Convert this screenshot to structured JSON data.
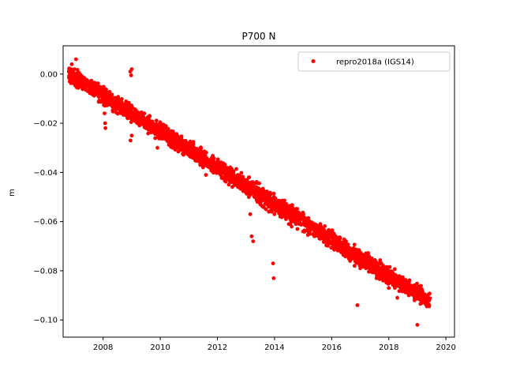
{
  "chart_data": {
    "type": "scatter",
    "title": "P700 N",
    "xlabel": "",
    "ylabel": "m",
    "xlim": [
      2006.6,
      2020.3
    ],
    "ylim": [
      -0.107,
      0.0115
    ],
    "xticks": [
      2008,
      2010,
      2012,
      2014,
      2016,
      2018,
      2020
    ],
    "yticks": [
      0.0,
      -0.02,
      -0.04,
      -0.06,
      -0.08,
      -0.1
    ],
    "ytick_labels": [
      "0.00",
      "−0.02",
      "−0.04",
      "−0.06",
      "−0.08",
      "−0.10"
    ],
    "legend": {
      "position": "top-right",
      "entries": [
        "repro2018a (IGS14)"
      ]
    },
    "series": [
      {
        "name": "repro2018a (IGS14)",
        "color": "#ff0000",
        "trend": {
          "x_start": 2006.8,
          "x_end": 2019.45,
          "y_start": 0.0,
          "y_end": -0.0925
        },
        "points": [
          [
            2006.8,
            0.001
          ],
          [
            2006.85,
            -0.002
          ],
          [
            2006.9,
            0.004
          ],
          [
            2007.0,
            0.002
          ],
          [
            2007.05,
            0.006
          ],
          [
            2007.1,
            0.0
          ],
          [
            2007.2,
            -0.001
          ],
          [
            2007.3,
            -0.002
          ],
          [
            2007.4,
            -0.004
          ],
          [
            2007.5,
            -0.005
          ],
          [
            2007.6,
            -0.006
          ],
          [
            2007.7,
            -0.007
          ],
          [
            2007.8,
            -0.008
          ],
          [
            2007.9,
            -0.009
          ],
          [
            2008.0,
            -0.01
          ],
          [
            2008.05,
            -0.016
          ],
          [
            2008.07,
            -0.02
          ],
          [
            2008.08,
            -0.022
          ],
          [
            2008.2,
            -0.011
          ],
          [
            2008.3,
            -0.012
          ],
          [
            2008.4,
            -0.013
          ],
          [
            2008.5,
            -0.014
          ],
          [
            2008.6,
            -0.015
          ],
          [
            2008.7,
            -0.016
          ],
          [
            2008.8,
            -0.016
          ],
          [
            2008.95,
            0.001
          ],
          [
            2009.0,
            0.002
          ],
          [
            2008.98,
            -0.0005
          ],
          [
            2008.96,
            -0.027
          ],
          [
            2009.0,
            -0.025
          ],
          [
            2009.1,
            -0.017
          ],
          [
            2009.2,
            -0.019
          ],
          [
            2009.3,
            -0.018
          ],
          [
            2009.4,
            -0.02
          ],
          [
            2009.5,
            -0.02
          ],
          [
            2009.6,
            -0.021
          ],
          [
            2009.7,
            -0.022
          ],
          [
            2009.8,
            -0.023
          ],
          [
            2009.9,
            -0.023
          ],
          [
            2010.0,
            -0.024
          ],
          [
            2009.9,
            -0.03
          ],
          [
            2010.1,
            -0.022
          ],
          [
            2010.2,
            -0.024
          ],
          [
            2010.3,
            -0.026
          ],
          [
            2010.5,
            -0.03
          ],
          [
            2010.6,
            -0.029
          ],
          [
            2010.7,
            -0.03
          ],
          [
            2010.8,
            -0.031
          ],
          [
            2010.9,
            -0.031
          ],
          [
            2011.0,
            -0.032
          ],
          [
            2011.2,
            -0.034
          ],
          [
            2011.3,
            -0.035
          ],
          [
            2011.4,
            -0.037
          ],
          [
            2011.5,
            -0.038
          ],
          [
            2011.6,
            -0.041
          ],
          [
            2011.8,
            -0.037
          ],
          [
            2012.0,
            -0.038
          ],
          [
            2012.1,
            -0.04
          ],
          [
            2012.2,
            -0.042
          ],
          [
            2012.3,
            -0.043
          ],
          [
            2012.4,
            -0.045
          ],
          [
            2012.5,
            -0.044
          ],
          [
            2012.6,
            -0.045
          ],
          [
            2012.8,
            -0.046
          ],
          [
            2013.0,
            -0.048
          ],
          [
            2013.1,
            -0.05
          ],
          [
            2013.15,
            -0.057
          ],
          [
            2013.2,
            -0.066
          ],
          [
            2013.25,
            -0.068
          ],
          [
            2013.3,
            -0.05
          ],
          [
            2013.4,
            -0.052
          ],
          [
            2013.5,
            -0.053
          ],
          [
            2013.6,
            -0.054
          ],
          [
            2013.7,
            -0.055
          ],
          [
            2013.8,
            -0.056
          ],
          [
            2013.9,
            -0.056
          ],
          [
            2013.95,
            -0.077
          ],
          [
            2013.97,
            -0.083
          ],
          [
            2014.0,
            -0.057
          ],
          [
            2014.2,
            -0.058
          ],
          [
            2014.4,
            -0.059
          ],
          [
            2014.5,
            -0.061
          ],
          [
            2014.6,
            -0.062
          ],
          [
            2014.8,
            -0.063
          ],
          [
            2015.0,
            -0.064
          ],
          [
            2015.2,
            -0.065
          ],
          [
            2015.4,
            -0.066
          ],
          [
            2015.6,
            -0.067
          ],
          [
            2015.8,
            -0.068
          ],
          [
            2016.0,
            -0.069
          ],
          [
            2016.2,
            -0.071
          ],
          [
            2016.4,
            -0.073
          ],
          [
            2016.6,
            -0.075
          ],
          [
            2016.8,
            -0.078
          ],
          [
            2016.9,
            -0.094
          ],
          [
            2017.0,
            -0.079
          ],
          [
            2017.2,
            -0.079
          ],
          [
            2017.4,
            -0.08
          ],
          [
            2017.6,
            -0.082
          ],
          [
            2017.8,
            -0.084
          ],
          [
            2018.0,
            -0.087
          ],
          [
            2018.2,
            -0.086
          ],
          [
            2018.3,
            -0.091
          ],
          [
            2018.5,
            -0.088
          ],
          [
            2018.7,
            -0.09
          ],
          [
            2018.9,
            -0.092
          ],
          [
            2019.0,
            -0.102
          ],
          [
            2019.1,
            -0.091
          ],
          [
            2019.2,
            -0.092
          ],
          [
            2019.3,
            -0.093
          ],
          [
            2019.4,
            -0.094
          ]
        ]
      }
    ]
  }
}
